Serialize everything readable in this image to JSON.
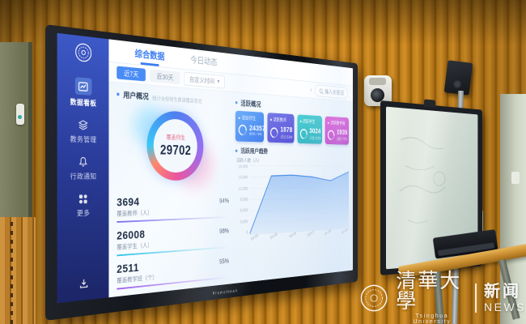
{
  "scene": {
    "screen_brand": "Promethean",
    "watermark": {
      "university_cn": "清華大學",
      "university_en": "Tsinghua University",
      "news_cn": "新闻",
      "news_en": "NEWS"
    }
  },
  "dashboard": {
    "sidebar": {
      "items": [
        {
          "label": "数据看板",
          "icon": "chart-icon"
        },
        {
          "label": "教务管理",
          "icon": "layers-icon"
        },
        {
          "label": "行政通知",
          "icon": "bell-icon"
        },
        {
          "label": "更多",
          "icon": "grid-icon"
        }
      ]
    },
    "tabs": [
      {
        "label": "综合数据"
      },
      {
        "label": "今日动态"
      }
    ],
    "filters": {
      "range7": "近7天",
      "range30": "近30天",
      "select": "自定义时间",
      "caret": "▾",
      "more": "›",
      "search": "输入关键词"
    },
    "user_overview": {
      "title": "用户概况",
      "subtitle": "统计全校师生慕课覆盖情况",
      "donut": {
        "label": "覆盖师生",
        "value": "29702"
      },
      "stats": [
        {
          "value": "3694",
          "label": "覆盖教师（人）",
          "percent": "94%",
          "color": "#7b6cf0"
        },
        {
          "value": "26008",
          "label": "覆盖学生（人）",
          "percent": "98%",
          "color": "#2fc4e8"
        },
        {
          "value": "2511",
          "label": "覆盖教学班（个）",
          "percent": "55%",
          "color": "#9a5cf0"
        }
      ]
    },
    "active_overview": {
      "title": "活跃概况",
      "cards": [
        {
          "title": "活跃师生",
          "value": "24357",
          "sub": "80% ↑4%",
          "color1": "#58a3f8",
          "color2": "#3f7ced"
        },
        {
          "title": "活跃教师",
          "value": "1878",
          "sub": "占比 51%",
          "color1": "#7579e8",
          "color2": "#5a55d6"
        },
        {
          "title": "活跃学生",
          "value": "3024",
          "sub": "占比 12%",
          "color1": "#4fd0d4",
          "color2": "#35b2c2"
        },
        {
          "title": "活跃教学班",
          "value": "1935",
          "sub": "占比 77%",
          "color1": "#e060d8",
          "color2": "#b846c8"
        }
      ]
    },
    "trend": {
      "title": "活跃用户趋势",
      "ylabel": "活跃人数（人）"
    }
  },
  "chart_data": {
    "type": "area",
    "title": "活跃用户趋势",
    "ylabel": "活跃人数（人）",
    "x": [
      "03-04",
      "03-05",
      "03-06",
      "03-07",
      "03-08",
      "03-09"
    ],
    "values": [
      300,
      15200,
      15400,
      14900,
      13800,
      16300
    ],
    "ylim": [
      0,
      18000
    ],
    "yticks": [
      "18,000",
      "15,000",
      "12,000",
      "9,000",
      "6,000",
      "3,000",
      "0"
    ],
    "grid": true,
    "fill": "#6fa8f0",
    "stroke": "#4f8fe8"
  }
}
